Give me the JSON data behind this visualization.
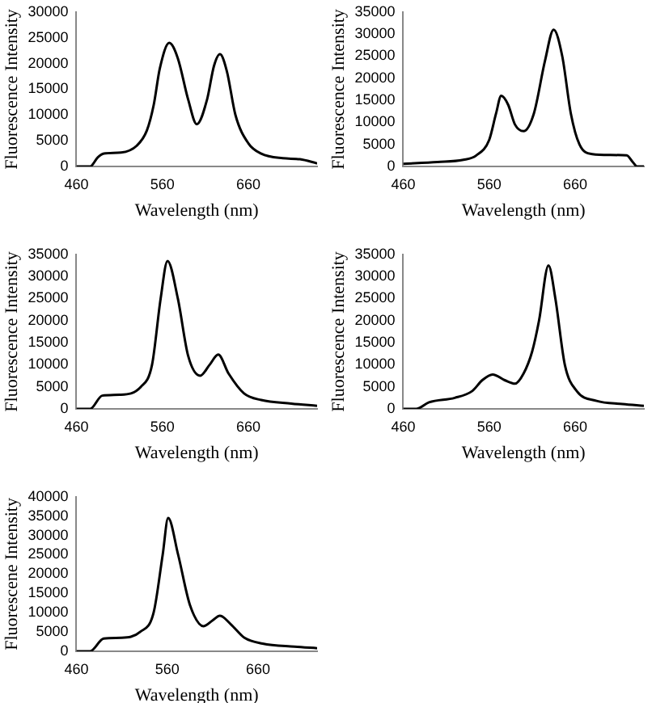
{
  "chart_data": [
    {
      "type": "line",
      "xlabel": "Wavelength (nm)",
      "ylabel": "Fluorescence Intensity",
      "color": "#000000",
      "legend": false,
      "grid": false,
      "marker": "none",
      "xlim": [
        460,
        740
      ],
      "xticks": [
        460,
        560,
        660
      ],
      "ylim": [
        0,
        30000
      ],
      "yticks": [
        0,
        5000,
        10000,
        15000,
        20000,
        25000,
        30000
      ],
      "x": [
        460,
        476,
        485,
        492,
        512,
        530,
        542,
        550,
        557,
        568,
        578,
        590,
        600,
        612,
        620,
        627,
        635,
        645,
        660,
        675,
        700,
        720,
        740
      ],
      "values": [
        0,
        0,
        1800,
        2500,
        2700,
        4000,
        7000,
        12000,
        19000,
        24000,
        21000,
        13000,
        8200,
        13000,
        19500,
        21800,
        18500,
        10000,
        4500,
        2500,
        1600,
        1400,
        600
      ]
    },
    {
      "type": "line",
      "xlabel": "Wavelength (nm)",
      "ylabel": "Fluorescence Intensity",
      "color": "#000000",
      "legend": false,
      "grid": false,
      "marker": "none",
      "xlim": [
        460,
        740
      ],
      "xticks": [
        460,
        560,
        660
      ],
      "ylim": [
        0,
        35000
      ],
      "yticks": [
        0,
        5000,
        10000,
        15000,
        20000,
        25000,
        30000,
        35000
      ],
      "x": [
        460,
        500,
        530,
        545,
        560,
        568,
        574,
        582,
        590,
        600,
        612,
        625,
        635,
        645,
        655,
        665,
        680,
        700,
        720,
        727,
        732,
        740
      ],
      "values": [
        600,
        1000,
        1500,
        2500,
        6000,
        12000,
        16000,
        14000,
        9500,
        8000,
        12000,
        24000,
        31000,
        25000,
        12000,
        5000,
        2800,
        2600,
        2500,
        1000,
        0,
        0
      ]
    },
    {
      "type": "line",
      "xlabel": "Wavelength (nm)",
      "ylabel": "Fluorescence Intensity",
      "color": "#000000",
      "legend": false,
      "grid": false,
      "marker": "none",
      "xlim": [
        460,
        740
      ],
      "xticks": [
        460,
        560,
        660
      ],
      "ylim": [
        0,
        35000
      ],
      "yticks": [
        0,
        5000,
        10000,
        15000,
        20000,
        25000,
        30000,
        35000
      ],
      "x": [
        460,
        476,
        490,
        510,
        535,
        548,
        558,
        566,
        578,
        590,
        604,
        615,
        625,
        637,
        655,
        675,
        710,
        740
      ],
      "values": [
        0,
        0,
        3000,
        3200,
        5000,
        10000,
        25000,
        33500,
        25000,
        12000,
        7500,
        10000,
        12300,
        8000,
        3500,
        2000,
        1200,
        700
      ]
    },
    {
      "type": "line",
      "xlabel": "Wavelength (nm)",
      "ylabel": "Fluorescence Intensity",
      "color": "#000000",
      "legend": false,
      "grid": false,
      "marker": "none",
      "xlim": [
        460,
        740
      ],
      "xticks": [
        460,
        560,
        660
      ],
      "ylim": [
        0,
        35000
      ],
      "yticks": [
        0,
        5000,
        10000,
        15000,
        20000,
        25000,
        30000,
        35000
      ],
      "x": [
        460,
        475,
        490,
        520,
        540,
        552,
        564,
        578,
        590,
        600,
        610,
        618,
        629,
        637,
        648,
        662,
        685,
        715,
        740
      ],
      "values": [
        0,
        0,
        1500,
        2500,
        4000,
        6500,
        7800,
        6500,
        5700,
        8000,
        13000,
        20000,
        32500,
        25000,
        10000,
        4000,
        1800,
        1100,
        700
      ]
    },
    {
      "type": "line",
      "xlabel": "Wavelength (nm)",
      "ylabel": "Fluorescene Intensity",
      "color": "#000000",
      "legend": false,
      "grid": false,
      "marker": "none",
      "xlim": [
        460,
        725
      ],
      "xticks": [
        460,
        560,
        660
      ],
      "ylim": [
        0,
        40000
      ],
      "yticks": [
        0,
        5000,
        10000,
        15000,
        20000,
        25000,
        30000,
        35000,
        40000
      ],
      "x": [
        460,
        475,
        490,
        510,
        530,
        545,
        555,
        561,
        572,
        585,
        600,
        610,
        618,
        630,
        645,
        665,
        700,
        725
      ],
      "values": [
        0,
        0,
        3300,
        3500,
        5000,
        10000,
        25000,
        34500,
        25000,
        12000,
        6500,
        8000,
        9200,
        7000,
        3500,
        2000,
        1200,
        800
      ]
    }
  ]
}
